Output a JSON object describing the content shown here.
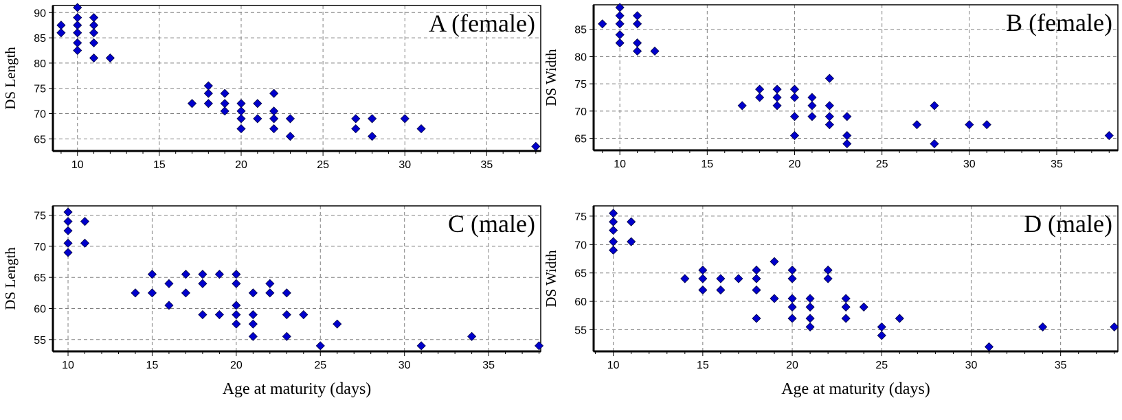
{
  "chart_data": [
    {
      "type": "scatter",
      "title": "A (female)",
      "xlabel": "",
      "ylabel": "DS Length",
      "xlim": [
        8.5,
        38.3
      ],
      "ylim": [
        62.6,
        91.4
      ],
      "xticks": [
        10,
        15,
        20,
        25,
        30,
        35
      ],
      "yticks": [
        65,
        70,
        75,
        80,
        85,
        90
      ],
      "grid": true,
      "color": "#0000CC",
      "points": [
        [
          9,
          86
        ],
        [
          9,
          87.5
        ],
        [
          10,
          82.5
        ],
        [
          10,
          84
        ],
        [
          10,
          86
        ],
        [
          10,
          87.5
        ],
        [
          10,
          89
        ],
        [
          10,
          91
        ],
        [
          11,
          81
        ],
        [
          11,
          84
        ],
        [
          11,
          86
        ],
        [
          11,
          87.5
        ],
        [
          11,
          89
        ],
        [
          12,
          81
        ],
        [
          17,
          72
        ],
        [
          18,
          72
        ],
        [
          18,
          74
        ],
        [
          18,
          75.5
        ],
        [
          19,
          70.5
        ],
        [
          19,
          72
        ],
        [
          19,
          74
        ],
        [
          20,
          67
        ],
        [
          20,
          69
        ],
        [
          20,
          70.5
        ],
        [
          20,
          72
        ],
        [
          21,
          69
        ],
        [
          21,
          72
        ],
        [
          22,
          67
        ],
        [
          22,
          69
        ],
        [
          22,
          70.5
        ],
        [
          22,
          74
        ],
        [
          23,
          65.5
        ],
        [
          23,
          69
        ],
        [
          27,
          67
        ],
        [
          27,
          69
        ],
        [
          28,
          65.5
        ],
        [
          28,
          69
        ],
        [
          30,
          69
        ],
        [
          31,
          67
        ],
        [
          38,
          63.5
        ]
      ]
    },
    {
      "type": "scatter",
      "title": "B (female)",
      "xlabel": "",
      "ylabel": "DS Width",
      "xlim": [
        8.5,
        38.5
      ],
      "ylim": [
        62.8,
        89.5
      ],
      "xticks": [
        10,
        15,
        20,
        25,
        30,
        35
      ],
      "yticks": [
        65,
        70,
        75,
        80,
        85
      ],
      "grid": true,
      "color": "#0000CC",
      "points": [
        [
          9,
          86
        ],
        [
          10,
          82.5
        ],
        [
          10,
          84
        ],
        [
          10,
          86
        ],
        [
          10,
          87.5
        ],
        [
          10,
          89
        ],
        [
          11,
          81
        ],
        [
          11,
          82.5
        ],
        [
          11,
          86
        ],
        [
          11,
          87.5
        ],
        [
          12,
          81
        ],
        [
          17,
          71
        ],
        [
          18,
          72.5
        ],
        [
          18,
          74
        ],
        [
          19,
          71
        ],
        [
          19,
          72.5
        ],
        [
          19,
          74
        ],
        [
          20,
          65.5
        ],
        [
          20,
          69
        ],
        [
          20,
          72.5
        ],
        [
          20,
          74
        ],
        [
          21,
          69
        ],
        [
          21,
          71
        ],
        [
          21,
          72.5
        ],
        [
          22,
          67.5
        ],
        [
          22,
          69
        ],
        [
          22,
          71
        ],
        [
          22,
          76
        ],
        [
          23,
          64
        ],
        [
          23,
          65.5
        ],
        [
          23,
          69
        ],
        [
          27,
          67.5
        ],
        [
          28,
          64
        ],
        [
          28,
          71
        ],
        [
          30,
          67.5
        ],
        [
          31,
          67.5
        ],
        [
          38,
          65.5
        ]
      ]
    },
    {
      "type": "scatter",
      "title": "C (male)",
      "xlabel": "Age at maturity (days)",
      "ylabel": "DS Length",
      "xlim": [
        9.1,
        38.1
      ],
      "ylim": [
        53.1,
        76.5
      ],
      "xticks": [
        10,
        15,
        20,
        25,
        30,
        35
      ],
      "yticks": [
        55,
        60,
        65,
        70,
        75
      ],
      "grid": true,
      "color": "#0000CC",
      "points": [
        [
          10,
          69
        ],
        [
          10,
          70.5
        ],
        [
          10,
          72.5
        ],
        [
          10,
          74
        ],
        [
          10,
          75.5
        ],
        [
          11,
          70.5
        ],
        [
          11,
          74
        ],
        [
          14,
          62.5
        ],
        [
          15,
          62.5
        ],
        [
          15,
          65.5
        ],
        [
          16,
          60.5
        ],
        [
          16,
          64
        ],
        [
          17,
          62.5
        ],
        [
          17,
          65.5
        ],
        [
          18,
          59
        ],
        [
          18,
          64
        ],
        [
          18,
          65.5
        ],
        [
          19,
          59
        ],
        [
          19,
          65.5
        ],
        [
          20,
          57.5
        ],
        [
          20,
          59
        ],
        [
          20,
          60.5
        ],
        [
          20,
          64
        ],
        [
          20,
          65.5
        ],
        [
          21,
          55.5
        ],
        [
          21,
          57.5
        ],
        [
          21,
          59
        ],
        [
          21,
          62.5
        ],
        [
          22,
          62.5
        ],
        [
          22,
          64
        ],
        [
          23,
          55.5
        ],
        [
          23,
          59
        ],
        [
          23,
          62.5
        ],
        [
          24,
          59
        ],
        [
          25,
          54
        ],
        [
          26,
          57.5
        ],
        [
          31,
          54
        ],
        [
          34,
          55.5
        ],
        [
          38,
          54
        ]
      ]
    },
    {
      "type": "scatter",
      "title": "D (male)",
      "xlabel": "Age at maturity (days)",
      "ylabel": "DS Width",
      "xlim": [
        8.9,
        38.2
      ],
      "ylim": [
        51.2,
        76.8
      ],
      "xticks": [
        10,
        15,
        20,
        25,
        30,
        35
      ],
      "yticks": [
        55,
        60,
        65,
        70,
        75
      ],
      "grid": true,
      "color": "#0000CC",
      "points": [
        [
          10,
          69
        ],
        [
          10,
          70.5
        ],
        [
          10,
          72.5
        ],
        [
          10,
          74
        ],
        [
          10,
          75.5
        ],
        [
          11,
          70.5
        ],
        [
          11,
          74
        ],
        [
          14,
          64
        ],
        [
          15,
          62
        ],
        [
          15,
          64
        ],
        [
          15,
          65.5
        ],
        [
          16,
          62
        ],
        [
          16,
          64
        ],
        [
          17,
          64
        ],
        [
          18,
          57
        ],
        [
          18,
          62
        ],
        [
          18,
          64
        ],
        [
          18,
          65.5
        ],
        [
          19,
          60.5
        ],
        [
          19,
          67
        ],
        [
          20,
          57
        ],
        [
          20,
          59
        ],
        [
          20,
          60.5
        ],
        [
          20,
          64
        ],
        [
          20,
          65.5
        ],
        [
          21,
          55.5
        ],
        [
          21,
          57
        ],
        [
          21,
          59
        ],
        [
          21,
          60.5
        ],
        [
          22,
          64
        ],
        [
          22,
          65.5
        ],
        [
          23,
          57
        ],
        [
          23,
          59
        ],
        [
          23,
          60.5
        ],
        [
          24,
          59
        ],
        [
          25,
          54
        ],
        [
          25,
          55.5
        ],
        [
          26,
          57
        ],
        [
          31,
          52
        ],
        [
          34,
          55.5
        ],
        [
          38,
          55.5
        ]
      ]
    }
  ]
}
